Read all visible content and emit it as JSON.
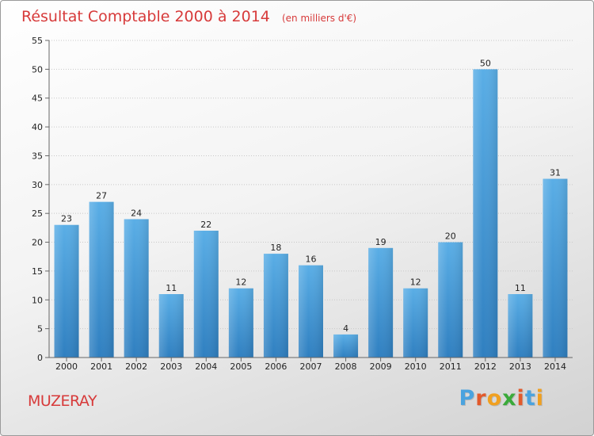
{
  "colors": {
    "title": "#d73a3a",
    "bar_light": "#5aaee6",
    "bar_dark": "#2f7fc0",
    "brand_letters": [
      "#4aa3df",
      "#e25a2c",
      "#f0a020",
      "#3aaa3a",
      "#e25a2c",
      "#4aa3df",
      "#f0a020"
    ]
  },
  "chart_data": {
    "type": "bar",
    "title": "Résultat Comptable 2000 à 2014",
    "subtitle": "(en milliers d'€)",
    "xlabel": "",
    "ylabel": "",
    "categories": [
      "2000",
      "2001",
      "2002",
      "2003",
      "2004",
      "2005",
      "2006",
      "2007",
      "2008",
      "2009",
      "2010",
      "2011",
      "2012",
      "2013",
      "2014"
    ],
    "values": [
      23,
      27,
      24,
      11,
      22,
      12,
      18,
      16,
      4,
      19,
      12,
      20,
      50,
      11,
      31
    ],
    "ylim": [
      0,
      55
    ],
    "yticks": [
      0,
      5,
      10,
      15,
      20,
      25,
      30,
      35,
      40,
      45,
      50,
      55
    ],
    "grid": true
  },
  "footer": {
    "city": "MUZERAY",
    "brand_letters": [
      "P",
      "r",
      "o",
      "x",
      "i",
      "t",
      "i"
    ]
  }
}
